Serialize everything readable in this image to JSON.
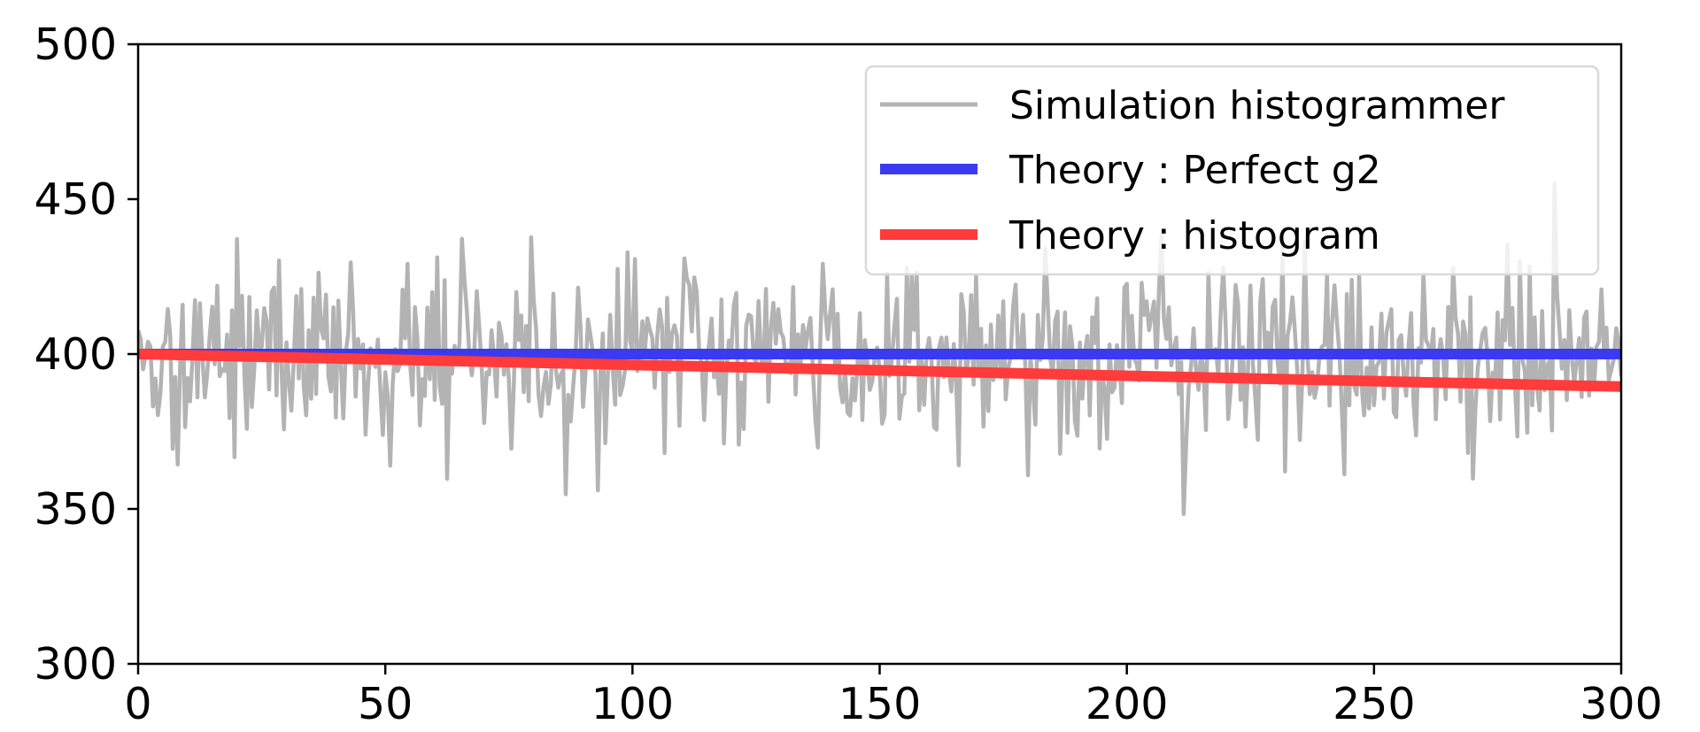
{
  "chart_data": {
    "type": "line",
    "title": "",
    "xlabel": "",
    "ylabel": "",
    "xlim": [
      0,
      300
    ],
    "ylim": [
      300,
      500
    ],
    "x_ticks": [
      0,
      50,
      100,
      150,
      200,
      250,
      300
    ],
    "y_ticks": [
      300,
      350,
      400,
      450,
      500
    ],
    "x_tick_labels": [
      "0",
      "50",
      "100",
      "150",
      "200",
      "250",
      "300"
    ],
    "y_tick_labels": [
      "300",
      "350",
      "400",
      "450",
      "500"
    ],
    "grid": false,
    "legend_position": "top-right",
    "series": [
      {
        "name": "Simulation histogrammer",
        "color": "#b3b3b3",
        "kind": "noisy",
        "x_step": 0.5,
        "mean": 400,
        "std": 16,
        "x_start": 0,
        "x_end": 300
      },
      {
        "name": "Theory : Perfect g2",
        "color": "#3a3af0",
        "x": [
          0,
          300
        ],
        "y": [
          400,
          400
        ]
      },
      {
        "name": "Theory : histogram",
        "color": "#ff3b3b",
        "x": [
          0,
          300
        ],
        "y": [
          400,
          389.5
        ]
      }
    ]
  }
}
